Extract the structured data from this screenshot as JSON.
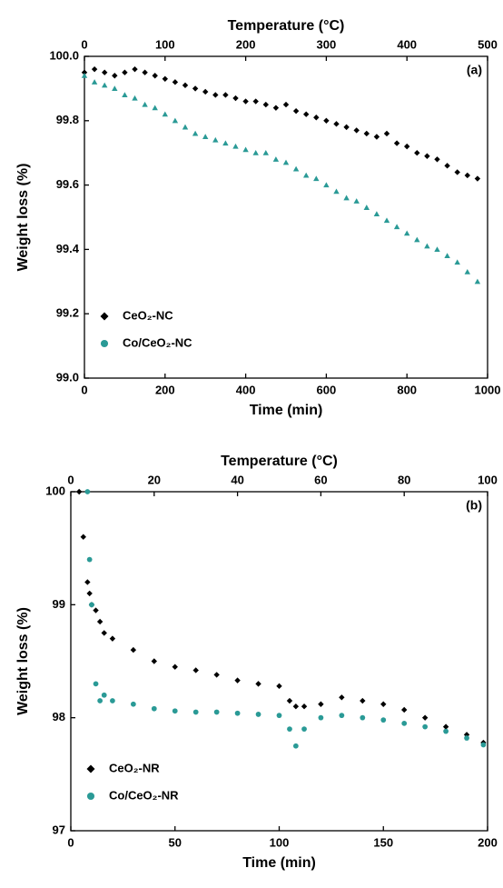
{
  "chart_data": [
    {
      "type": "scatter",
      "annotation": "(a)",
      "x_label": "Time (min)",
      "y_label": "Weight loss (%)",
      "x2_label": "Temperature (°C)",
      "x": [
        0,
        25,
        50,
        75,
        100,
        125,
        150,
        175,
        200,
        225,
        250,
        275,
        300,
        325,
        350,
        375,
        400,
        425,
        450,
        475,
        500,
        525,
        550,
        575,
        600,
        625,
        650,
        675,
        700,
        725,
        750,
        775,
        800,
        825,
        850,
        875,
        900,
        925,
        950,
        975
      ],
      "series": [
        {
          "name": "CeO₂-NC",
          "color": "#000000",
          "marker": "diamond",
          "legend_marker": "diamond",
          "values": [
            99.95,
            99.96,
            99.95,
            99.94,
            99.95,
            99.96,
            99.95,
            99.94,
            99.93,
            99.92,
            99.91,
            99.9,
            99.89,
            99.88,
            99.88,
            99.87,
            99.86,
            99.86,
            99.85,
            99.84,
            99.85,
            99.83,
            99.82,
            99.81,
            99.8,
            99.79,
            99.78,
            99.77,
            99.76,
            99.75,
            99.76,
            99.73,
            99.72,
            99.7,
            99.69,
            99.68,
            99.66,
            99.64,
            99.63,
            99.62
          ]
        },
        {
          "name": "Co/CeO₂-NC",
          "color": "#2a9a96",
          "marker": "triangle",
          "legend_marker": "circle",
          "values": [
            99.94,
            99.92,
            99.91,
            99.9,
            99.88,
            99.87,
            99.85,
            99.84,
            99.82,
            99.8,
            99.78,
            99.76,
            99.75,
            99.74,
            99.73,
            99.72,
            99.71,
            99.7,
            99.7,
            99.68,
            99.67,
            99.65,
            99.63,
            99.62,
            99.6,
            99.58,
            99.56,
            99.55,
            99.53,
            99.51,
            99.49,
            99.47,
            99.45,
            99.43,
            99.41,
            99.4,
            99.38,
            99.36,
            99.33,
            99.3
          ]
        }
      ],
      "xlim": [
        0,
        1000
      ],
      "xticks": [
        0,
        200,
        400,
        600,
        800,
        1000
      ],
      "x2lim": [
        0,
        500
      ],
      "x2ticks": [
        0,
        100,
        200,
        300,
        400,
        500
      ],
      "ylim": [
        99,
        100
      ],
      "yticks": [
        {
          "value": 99,
          "label": "99.0"
        },
        99.2,
        99.4,
        99.6,
        99.8,
        {
          "value": 100,
          "label": "100.0"
        }
      ],
      "legend": "lower left"
    },
    {
      "type": "scatter",
      "annotation": "(b)",
      "x_label": "Time (min)",
      "y_label": "Weight loss (%)",
      "x2_label": "Temperature (°C)",
      "x": [
        4,
        6,
        8,
        9,
        10,
        12,
        14,
        16,
        20,
        30,
        40,
        50,
        60,
        70,
        80,
        90,
        100,
        105,
        108,
        112,
        120,
        130,
        140,
        150,
        160,
        170,
        180,
        190,
        198
      ],
      "series": [
        {
          "name": "CeO₂-NR",
          "color": "#000000",
          "marker": "diamond",
          "legend_marker": "diamond",
          "values": [
            100.0,
            99.6,
            99.2,
            99.1,
            99.0,
            98.95,
            98.85,
            98.75,
            98.7,
            98.6,
            98.5,
            98.45,
            98.42,
            98.38,
            98.33,
            98.3,
            98.28,
            98.15,
            98.1,
            98.1,
            98.12,
            98.18,
            98.15,
            98.12,
            98.07,
            98.0,
            97.92,
            97.85,
            97.78
          ]
        },
        {
          "name": "Co/CeO₂-NR",
          "color": "#2a9a96",
          "marker": "circle",
          "legend_marker": "circle",
          "values": [
            null,
            null,
            100.0,
            99.4,
            99.0,
            98.3,
            98.15,
            98.2,
            98.15,
            98.12,
            98.08,
            98.06,
            98.05,
            98.05,
            98.04,
            98.03,
            98.02,
            97.9,
            97.75,
            97.9,
            98.0,
            98.02,
            98.0,
            97.98,
            97.95,
            97.92,
            97.88,
            97.82,
            97.76
          ]
        }
      ],
      "xlim": [
        0,
        200
      ],
      "xticks": [
        0,
        50,
        100,
        150,
        200
      ],
      "x2lim": [
        0,
        100
      ],
      "x2ticks": [
        0,
        20,
        40,
        60,
        80,
        100
      ],
      "ylim": [
        97,
        100
      ],
      "yticks": [
        97,
        98,
        99,
        100
      ],
      "legend": "lower left"
    }
  ]
}
